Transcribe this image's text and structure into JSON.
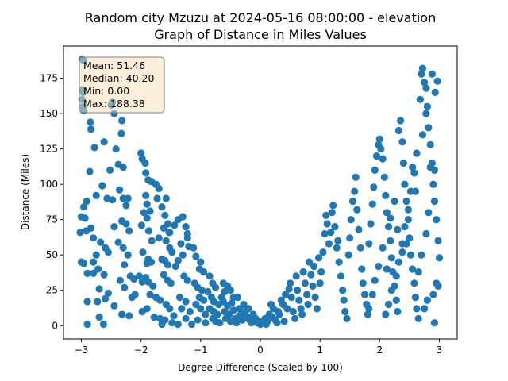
{
  "chart_data": {
    "type": "scatter",
    "title_line1": "Random city Mzuzu at 2024-05-16 08:00:00  - elevation",
    "title_line2": "Graph of Distance in Miles Values",
    "xlabel": "Degree Difference (Scaled by 100)",
    "ylabel": "Distance (Miles)",
    "xlim": [
      -3.3,
      3.3
    ],
    "ylim": [
      -9.4,
      197.8
    ],
    "xticks": [
      -3,
      -2,
      -1,
      0,
      1,
      2,
      3
    ],
    "yticks": [
      0,
      25,
      50,
      75,
      100,
      125,
      150,
      175
    ],
    "marker_color": "#1f77b4",
    "stats_box": {
      "lines": [
        "Mean: 51.46",
        "Median: 40.20",
        "Min: 0.00",
        "Max: 188.38"
      ],
      "facecolor": "#f5deb3",
      "edgecolor": "#7f7f7f"
    },
    "points": [
      [
        -2.99,
        188.4
      ],
      [
        -2.96,
        187.5
      ],
      [
        -2.98,
        167
      ],
      [
        -2.97,
        165
      ],
      [
        -2.99,
        160
      ],
      [
        -2.97,
        155
      ],
      [
        -2.96,
        152
      ],
      [
        -2.85,
        144
      ],
      [
        -2.84,
        139
      ],
      [
        -2.78,
        126
      ],
      [
        -2.62,
        130
      ],
      [
        -2.52,
        110
      ],
      [
        -2.86,
        109
      ],
      [
        -2.91,
        88
      ],
      [
        -2.96,
        84
      ],
      [
        -3.0,
        77
      ],
      [
        -2.94,
        76
      ],
      [
        -2.75,
        92
      ],
      [
        -2.65,
        99
      ],
      [
        -2.57,
        90
      ],
      [
        -2.48,
        89
      ],
      [
        -2.92,
        67
      ],
      [
        -3.02,
        66
      ],
      [
        -2.84,
        69
      ],
      [
        -2.8,
        62
      ],
      [
        -2.68,
        59
      ],
      [
        -2.6,
        55
      ],
      [
        -2.55,
        52
      ],
      [
        -2.75,
        50
      ],
      [
        -2.8,
        45
      ],
      [
        -3.0,
        45
      ],
      [
        -2.96,
        44
      ],
      [
        -2.72,
        40
      ],
      [
        -2.62,
        36
      ],
      [
        -2.8,
        37
      ],
      [
        -2.9,
        37
      ],
      [
        -2.7,
        26
      ],
      [
        -2.73,
        17
      ],
      [
        -2.9,
        17
      ],
      [
        -2.6,
        19
      ],
      [
        -2.55,
        23
      ],
      [
        -2.45,
        14
      ],
      [
        -2.7,
        6
      ],
      [
        -2.63,
        1
      ],
      [
        -2.9,
        1
      ],
      [
        -2.48,
        158
      ],
      [
        -2.5,
        156
      ],
      [
        -2.45,
        150
      ],
      [
        -2.42,
        125
      ],
      [
        -2.32,
        145
      ],
      [
        -2.33,
        136
      ],
      [
        -2.38,
        114
      ],
      [
        -2.3,
        112
      ],
      [
        -2.36,
        96
      ],
      [
        -2.3,
        90
      ],
      [
        -2.22,
        90
      ],
      [
        -2.25,
        85
      ],
      [
        -2.32,
        74
      ],
      [
        -2.25,
        72
      ],
      [
        -2.2,
        67
      ],
      [
        -2.45,
        70
      ],
      [
        -2.38,
        59
      ],
      [
        -2.3,
        55
      ],
      [
        -2.22,
        50
      ],
      [
        -2.28,
        43
      ],
      [
        -2.35,
        32
      ],
      [
        -2.28,
        27
      ],
      [
        -2.18,
        35
      ],
      [
        -2.12,
        33
      ],
      [
        -2.32,
        8
      ],
      [
        -2.2,
        7
      ],
      [
        -2.15,
        20
      ],
      [
        -2.1,
        22
      ],
      [
        -2.0,
        122
      ],
      [
        -1.98,
        118
      ],
      [
        -1.93,
        115
      ],
      [
        -1.92,
        108
      ],
      [
        -1.88,
        103
      ],
      [
        -1.83,
        102
      ],
      [
        -1.92,
        92
      ],
      [
        -1.9,
        86
      ],
      [
        -1.85,
        81
      ],
      [
        -1.95,
        80
      ],
      [
        -1.9,
        76
      ],
      [
        -1.99,
        71
      ],
      [
        -1.87,
        67
      ],
      [
        -1.82,
        60
      ],
      [
        -1.97,
        52
      ],
      [
        -1.88,
        47
      ],
      [
        -1.83,
        45
      ],
      [
        -1.9,
        44
      ],
      [
        -2.03,
        35
      ],
      [
        -1.92,
        34
      ],
      [
        -1.98,
        31
      ],
      [
        -1.88,
        31
      ],
      [
        -1.8,
        28
      ],
      [
        -1.85,
        22
      ],
      [
        -1.75,
        20
      ],
      [
        -1.9,
        12
      ],
      [
        -1.98,
        10
      ],
      [
        -1.78,
        6
      ],
      [
        -1.68,
        5
      ],
      [
        -2.0,
        122
      ],
      [
        -1.75,
        100
      ],
      [
        -1.7,
        97
      ],
      [
        -1.73,
        90
      ],
      [
        -1.65,
        84
      ],
      [
        -1.58,
        90
      ],
      [
        -1.6,
        78
      ],
      [
        -1.55,
        72
      ],
      [
        -1.62,
        69
      ],
      [
        -1.53,
        66
      ],
      [
        -1.7,
        62
      ],
      [
        -1.58,
        60
      ],
      [
        -1.52,
        55
      ],
      [
        -1.48,
        52
      ],
      [
        -1.65,
        47
      ],
      [
        -1.6,
        46
      ],
      [
        -1.55,
        43
      ],
      [
        -1.62,
        36
      ],
      [
        -1.55,
        32
      ],
      [
        -1.5,
        30
      ],
      [
        -1.68,
        18
      ],
      [
        -1.58,
        15
      ],
      [
        -1.52,
        12
      ],
      [
        -1.45,
        7
      ],
      [
        -1.6,
        4
      ],
      [
        -1.65,
        1
      ],
      [
        -1.48,
        2
      ],
      [
        -1.52,
        66
      ],
      [
        -1.44,
        71
      ],
      [
        -1.38,
        75
      ],
      [
        -1.3,
        77
      ],
      [
        -1.25,
        70
      ],
      [
        -1.22,
        65
      ],
      [
        -1.33,
        58
      ],
      [
        -1.3,
        50
      ],
      [
        -1.38,
        46
      ],
      [
        -1.42,
        42
      ],
      [
        -1.22,
        62
      ],
      [
        -1.2,
        56
      ],
      [
        -1.28,
        35
      ],
      [
        -1.22,
        32
      ],
      [
        -1.35,
        20
      ],
      [
        -1.25,
        17
      ],
      [
        -1.32,
        12
      ],
      [
        -1.18,
        10
      ],
      [
        -1.25,
        5
      ],
      [
        -1.38,
        1
      ],
      [
        -1.15,
        1
      ],
      [
        -1.12,
        55
      ],
      [
        -1.08,
        49
      ],
      [
        -1.0,
        45
      ],
      [
        -1.02,
        40
      ],
      [
        -0.95,
        38
      ],
      [
        -1.1,
        30
      ],
      [
        -1.05,
        27
      ],
      [
        -0.98,
        25
      ],
      [
        -1.02,
        20
      ],
      [
        -0.95,
        18
      ],
      [
        -1.08,
        15
      ],
      [
        -1.0,
        12
      ],
      [
        -0.92,
        8
      ],
      [
        -1.05,
        4
      ],
      [
        -0.92,
        2
      ],
      [
        -0.85,
        35
      ],
      [
        -0.8,
        30
      ],
      [
        -0.75,
        27
      ],
      [
        -0.88,
        24
      ],
      [
        -0.82,
        20
      ],
      [
        -0.78,
        17
      ],
      [
        -0.7,
        15
      ],
      [
        -0.85,
        12
      ],
      [
        -0.78,
        10
      ],
      [
        -0.72,
        8
      ],
      [
        -0.8,
        5
      ],
      [
        -0.75,
        3
      ],
      [
        -0.68,
        2
      ],
      [
        -0.65,
        20
      ],
      [
        -0.6,
        24
      ],
      [
        -0.55,
        28
      ],
      [
        -0.5,
        25
      ],
      [
        -0.62,
        17
      ],
      [
        -0.55,
        14
      ],
      [
        -0.48,
        16
      ],
      [
        -0.6,
        10
      ],
      [
        -0.52,
        8
      ],
      [
        -0.45,
        11
      ],
      [
        -0.58,
        5
      ],
      [
        -0.5,
        3
      ],
      [
        -0.42,
        5
      ],
      [
        -0.38,
        20
      ],
      [
        -0.35,
        12
      ],
      [
        -0.32,
        8
      ],
      [
        -0.4,
        2
      ],
      [
        -0.3,
        4
      ],
      [
        -0.25,
        10
      ],
      [
        -0.22,
        6
      ],
      [
        -0.18,
        4
      ],
      [
        -0.15,
        2
      ],
      [
        -0.12,
        8
      ],
      [
        -0.08,
        5
      ],
      [
        -0.05,
        2
      ],
      [
        0.0,
        1
      ],
      [
        -0.02,
        3
      ],
      [
        -0.28,
        15
      ],
      [
        -0.45,
        20
      ],
      [
        -0.62,
        30
      ],
      [
        -0.35,
        7
      ],
      [
        -0.2,
        12
      ],
      [
        0.05,
        2
      ],
      [
        0.08,
        5
      ],
      [
        0.12,
        3
      ],
      [
        0.15,
        8
      ],
      [
        0.1,
        1
      ],
      [
        0.2,
        6
      ],
      [
        0.22,
        12
      ],
      [
        0.25,
        4
      ],
      [
        0.18,
        15
      ],
      [
        0.28,
        2
      ],
      [
        0.3,
        10
      ],
      [
        0.35,
        18
      ],
      [
        0.32,
        8
      ],
      [
        0.38,
        15
      ],
      [
        0.4,
        3
      ],
      [
        0.42,
        22
      ],
      [
        0.45,
        12
      ],
      [
        0.48,
        26
      ],
      [
        0.5,
        30
      ],
      [
        0.52,
        20
      ],
      [
        0.55,
        10
      ],
      [
        0.58,
        5
      ],
      [
        0.6,
        35
      ],
      [
        0.62,
        25
      ],
      [
        0.65,
        18
      ],
      [
        0.68,
        12
      ],
      [
        0.7,
        8
      ],
      [
        0.72,
        38
      ],
      [
        0.75,
        30
      ],
      [
        0.78,
        22
      ],
      [
        0.8,
        15
      ],
      [
        0.82,
        45
      ],
      [
        0.85,
        36
      ],
      [
        0.88,
        28
      ],
      [
        0.9,
        42
      ],
      [
        0.92,
        20
      ],
      [
        0.95,
        12
      ],
      [
        0.98,
        48
      ],
      [
        1.0,
        30
      ],
      [
        1.02,
        38
      ],
      [
        1.05,
        52
      ],
      [
        1.08,
        65
      ],
      [
        1.1,
        78
      ],
      [
        1.12,
        72
      ],
      [
        1.15,
        58
      ],
      [
        1.18,
        66
      ],
      [
        1.2,
        80
      ],
      [
        1.22,
        85
      ],
      [
        1.25,
        70
      ],
      [
        1.28,
        55
      ],
      [
        1.3,
        60
      ],
      [
        1.32,
        45
      ],
      [
        1.35,
        35
      ],
      [
        1.38,
        25
      ],
      [
        1.4,
        18
      ],
      [
        1.42,
        10
      ],
      [
        1.45,
        5
      ],
      [
        1.48,
        50
      ],
      [
        1.5,
        62
      ],
      [
        1.52,
        75
      ],
      [
        1.55,
        88
      ],
      [
        1.58,
        95
      ],
      [
        1.6,
        105
      ],
      [
        1.62,
        82
      ],
      [
        1.65,
        68
      ],
      [
        1.68,
        55
      ],
      [
        1.7,
        40
      ],
      [
        1.72,
        30
      ],
      [
        1.75,
        22
      ],
      [
        1.78,
        15
      ],
      [
        1.8,
        8
      ],
      [
        1.82,
        58
      ],
      [
        1.85,
        72
      ],
      [
        1.88,
        86
      ],
      [
        1.9,
        98
      ],
      [
        1.92,
        110
      ],
      [
        1.95,
        120
      ],
      [
        1.98,
        128
      ],
      [
        2.0,
        132
      ],
      [
        2.02,
        125
      ],
      [
        2.05,
        118
      ],
      [
        2.08,
        105
      ],
      [
        2.1,
        92
      ],
      [
        2.12,
        80
      ],
      [
        2.15,
        70
      ],
      [
        2.18,
        60
      ],
      [
        2.2,
        48
      ],
      [
        2.22,
        38
      ],
      [
        2.25,
        28
      ],
      [
        2.28,
        18
      ],
      [
        2.3,
        10
      ],
      [
        2.32,
        138
      ],
      [
        2.35,
        145
      ],
      [
        2.38,
        130
      ],
      [
        2.4,
        115
      ],
      [
        2.42,
        100
      ],
      [
        2.45,
        88
      ],
      [
        2.48,
        75
      ],
      [
        2.5,
        62
      ],
      [
        2.52,
        50
      ],
      [
        2.55,
        40
      ],
      [
        2.58,
        30
      ],
      [
        2.6,
        20
      ],
      [
        2.62,
        12
      ],
      [
        2.65,
        5
      ],
      [
        2.68,
        160
      ],
      [
        2.7,
        178
      ],
      [
        2.72,
        182
      ],
      [
        2.75,
        172
      ],
      [
        2.78,
        168
      ],
      [
        2.8,
        155
      ],
      [
        2.82,
        140
      ],
      [
        2.85,
        128
      ],
      [
        2.88,
        115
      ],
      [
        2.9,
        100
      ],
      [
        2.92,
        88
      ],
      [
        2.95,
        75
      ],
      [
        2.98,
        60
      ],
      [
        3.0,
        48
      ],
      [
        2.97,
        173
      ],
      [
        2.93,
        165
      ],
      [
        2.88,
        178
      ],
      [
        2.78,
        150
      ],
      [
        2.72,
        135
      ],
      [
        2.62,
        122
      ],
      [
        2.58,
        108
      ],
      [
        2.52,
        95
      ],
      [
        2.48,
        82
      ],
      [
        2.42,
        70
      ],
      [
        2.38,
        58
      ],
      [
        2.32,
        45
      ],
      [
        2.28,
        35
      ],
      [
        2.2,
        25
      ],
      [
        2.15,
        15
      ],
      [
        2.1,
        8
      ],
      [
        2.05,
        55
      ],
      [
        1.98,
        42
      ],
      [
        1.92,
        32
      ],
      [
        1.88,
        22
      ],
      [
        1.82,
        12
      ],
      [
        2.85,
        112
      ],
      [
        2.92,
        110
      ],
      [
        2.95,
        30
      ],
      [
        2.98,
        28
      ],
      [
        2.9,
        22
      ],
      [
        2.8,
        18
      ],
      [
        2.75,
        12
      ],
      [
        2.92,
        2
      ],
      [
        2.82,
        80
      ],
      [
        2.78,
        65
      ],
      [
        2.7,
        50
      ],
      [
        2.65,
        38
      ],
      [
        2.6,
        95
      ],
      [
        2.55,
        112
      ],
      [
        2.45,
        58
      ],
      [
        2.38,
        52
      ],
      [
        2.3,
        68
      ],
      [
        2.25,
        88
      ],
      [
        2.18,
        76
      ],
      [
        2.12,
        40
      ]
    ]
  }
}
